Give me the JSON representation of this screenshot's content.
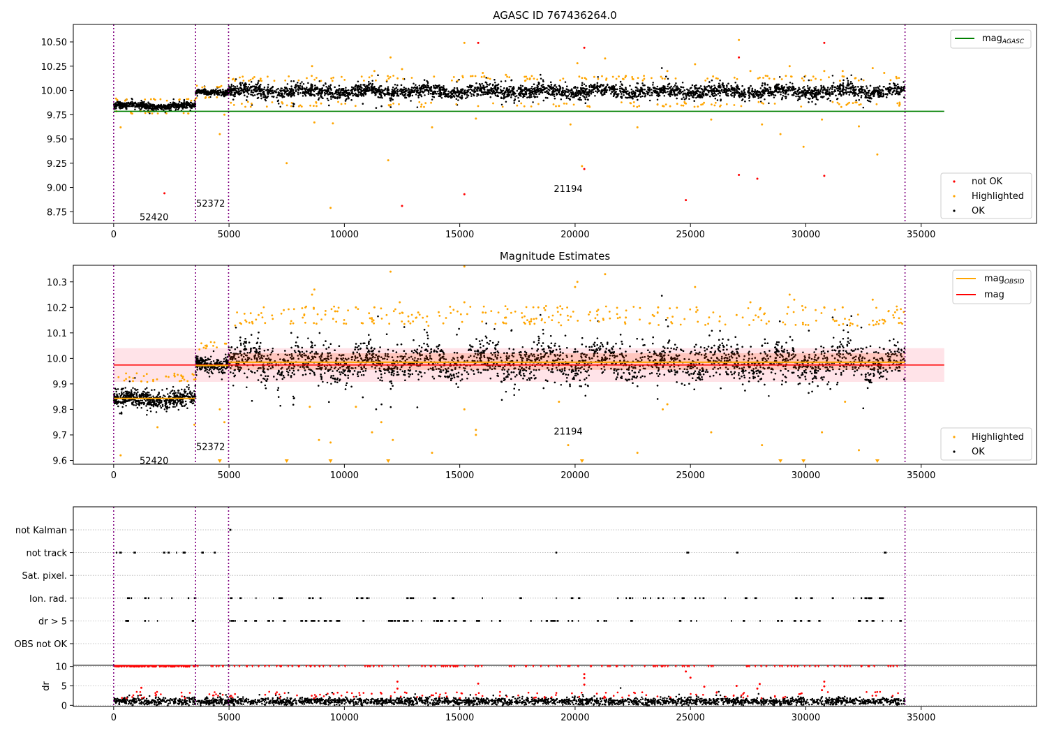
{
  "chart_data": [
    {
      "type": "scatter",
      "title": "AGASC ID 767436264.0",
      "xlim": [
        -1750,
        40000
      ],
      "ylim": [
        8.63,
        10.68
      ],
      "xticks": [
        0,
        5000,
        10000,
        15000,
        20000,
        25000,
        30000,
        35000
      ],
      "xtick_labels": [
        "0",
        "5000",
        "10000",
        "15000",
        "20000",
        "25000",
        "30000",
        "35000"
      ],
      "yticks": [
        8.75,
        9.0,
        9.25,
        9.5,
        9.75,
        10.0,
        10.25,
        10.5
      ],
      "ytick_labels": [
        "8.75",
        "9.00",
        "9.25",
        "9.50",
        "9.75",
        "10.00",
        "10.25",
        "10.50"
      ],
      "obsid_boundaries": [
        0,
        3550,
        4980,
        34300
      ],
      "obsid_labels": [
        {
          "text": "52420",
          "x": 1750,
          "y": 8.7
        },
        {
          "text": "52372",
          "x": 4200,
          "y": 8.84
        },
        {
          "text": "21194",
          "x": 19700,
          "y": 8.99
        }
      ],
      "lines": [
        {
          "name": "mag",
          "subscript": "AGASC",
          "y": 9.785,
          "x": [
            0,
            36000
          ],
          "color": "#008000"
        }
      ],
      "ok_segments": [
        {
          "x": [
            0,
            3550
          ],
          "center": 9.84,
          "spread": 0.03
        },
        {
          "x": [
            3550,
            4980
          ],
          "center": 9.985,
          "spread": 0.025
        },
        {
          "x": [
            4980,
            34300
          ],
          "center": 9.99,
          "spread": 0.06
        }
      ],
      "highlighted_points": [
        [
          300,
          9.62
        ],
        [
          4600,
          9.55
        ],
        [
          4800,
          9.75
        ],
        [
          7500,
          9.25
        ],
        [
          8700,
          9.67
        ],
        [
          9400,
          8.79
        ],
        [
          9500,
          9.66
        ],
        [
          11900,
          9.28
        ],
        [
          12000,
          10.34
        ],
        [
          13800,
          9.62
        ],
        [
          15200,
          10.49
        ],
        [
          15700,
          9.71
        ],
        [
          19300,
          9.84
        ],
        [
          19800,
          9.65
        ],
        [
          20300,
          9.22
        ],
        [
          21300,
          10.33
        ],
        [
          22700,
          9.62
        ],
        [
          23800,
          9.84
        ],
        [
          25900,
          9.7
        ],
        [
          27100,
          10.52
        ],
        [
          28100,
          9.65
        ],
        [
          28900,
          9.55
        ],
        [
          29900,
          9.42
        ],
        [
          30700,
          9.7
        ],
        [
          32300,
          9.63
        ],
        [
          33100,
          9.34
        ],
        [
          8600,
          10.25
        ],
        [
          11300,
          10.2
        ],
        [
          12500,
          10.22
        ],
        [
          16000,
          10.18
        ],
        [
          17000,
          10.16
        ],
        [
          20100,
          10.28
        ],
        [
          22200,
          10.15
        ],
        [
          24000,
          10.2
        ],
        [
          25200,
          10.27
        ],
        [
          27600,
          10.2
        ],
        [
          29300,
          10.25
        ],
        [
          30800,
          10.2
        ],
        [
          31600,
          10.2
        ],
        [
          32900,
          10.23
        ],
        [
          33400,
          10.18
        ]
      ],
      "notok_points": [
        [
          2200,
          8.94
        ],
        [
          12500,
          8.81
        ],
        [
          15200,
          8.93
        ],
        [
          15800,
          10.49
        ],
        [
          20400,
          10.44
        ],
        [
          20400,
          9.19
        ],
        [
          24800,
          8.87
        ],
        [
          27100,
          10.34
        ],
        [
          27100,
          9.13
        ],
        [
          27900,
          9.09
        ],
        [
          30800,
          10.49
        ],
        [
          30800,
          9.12
        ]
      ],
      "legend_top": "top-right",
      "legend_bottom": "bottom-right",
      "legend_entries": [
        {
          "label": "not OK",
          "color": "#ff0000"
        },
        {
          "label": "Highlighted",
          "color": "#ffa500"
        },
        {
          "label": "OK",
          "color": "#000000"
        }
      ],
      "xlabel": "",
      "ylabel": ""
    },
    {
      "type": "scatter",
      "title": "Magnitude Estimates",
      "xlim": [
        -1750,
        40000
      ],
      "ylim": [
        9.585,
        10.365
      ],
      "xticks": [
        0,
        5000,
        10000,
        15000,
        20000,
        25000,
        30000,
        35000
      ],
      "xtick_labels": [
        "0",
        "5000",
        "10000",
        "15000",
        "20000",
        "25000",
        "30000",
        "35000"
      ],
      "yticks": [
        9.6,
        9.7,
        9.8,
        9.9,
        10.0,
        10.1,
        10.2,
        10.3
      ],
      "ytick_labels": [
        "9.6",
        "9.7",
        "9.8",
        "9.9",
        "10.0",
        "10.1",
        "10.2",
        "10.3"
      ],
      "obsid_boundaries": [
        0,
        3550,
        4980,
        34300
      ],
      "obsid_labels": [
        {
          "text": "52420",
          "x": 1750,
          "y": 9.6
        },
        {
          "text": "52372",
          "x": 4200,
          "y": 9.655
        },
        {
          "text": "21194",
          "x": 19700,
          "y": 9.715
        }
      ],
      "band": {
        "x": [
          0,
          36000
        ],
        "y": [
          9.908,
          10.04
        ],
        "color": "#ffc0cb"
      },
      "inner_band": {
        "x": [
          4980,
          34300
        ],
        "y": [
          9.955,
          10.02
        ],
        "color": "#ff4500"
      },
      "lines": [
        {
          "name": "mag",
          "subscript": "",
          "y": 9.974,
          "x": [
            0,
            36000
          ],
          "color": "#ff0000"
        },
        {
          "name": "mag",
          "subscript": "OBSID",
          "color": "#ffa500",
          "segments": [
            {
              "x": [
                0,
                3550
              ],
              "y": 9.843
            },
            {
              "x": [
                3550,
                4980
              ],
              "y": 9.972
            },
            {
              "x": [
                4980,
                34300
              ],
              "y": 9.985
            }
          ]
        }
      ],
      "ok_segments": [
        {
          "x": [
            0,
            3550
          ],
          "center": 9.84,
          "spread": 0.03
        },
        {
          "x": [
            3550,
            4980
          ],
          "center": 9.98,
          "spread": 0.025
        },
        {
          "x": [
            4980,
            34300
          ],
          "center": 9.985,
          "spread": 0.065
        }
      ],
      "highlighted_points": [
        [
          300,
          9.62
        ],
        [
          1200,
          9.91
        ],
        [
          1900,
          9.73
        ],
        [
          3500,
          9.74
        ],
        [
          4600,
          9.8
        ],
        [
          4800,
          9.75
        ],
        [
          8500,
          9.81
        ],
        [
          8900,
          9.68
        ],
        [
          9400,
          9.67
        ],
        [
          10500,
          9.81
        ],
        [
          11200,
          9.71
        ],
        [
          11600,
          9.75
        ],
        [
          12000,
          10.34
        ],
        [
          12100,
          9.68
        ],
        [
          13800,
          9.63
        ],
        [
          15200,
          10.36
        ],
        [
          15200,
          9.8
        ],
        [
          15700,
          9.72
        ],
        [
          15700,
          9.7
        ],
        [
          19300,
          9.83
        ],
        [
          19700,
          9.66
        ],
        [
          21300,
          10.33
        ],
        [
          22700,
          9.63
        ],
        [
          23800,
          9.8
        ],
        [
          24000,
          9.82
        ],
        [
          25900,
          9.71
        ],
        [
          28100,
          9.66
        ],
        [
          30700,
          9.71
        ],
        [
          31700,
          9.83
        ],
        [
          32300,
          9.64
        ],
        [
          8600,
          10.25
        ],
        [
          8700,
          10.27
        ],
        [
          10500,
          10.2
        ],
        [
          11300,
          10.2
        ],
        [
          12400,
          10.22
        ],
        [
          13200,
          10.18
        ],
        [
          15200,
          10.22
        ],
        [
          16000,
          10.18
        ],
        [
          17000,
          10.16
        ],
        [
          20000,
          10.28
        ],
        [
          20100,
          10.3
        ],
        [
          22200,
          10.16
        ],
        [
          23600,
          10.2
        ],
        [
          25200,
          10.28
        ],
        [
          27000,
          10.17
        ],
        [
          27600,
          10.22
        ],
        [
          29300,
          10.25
        ],
        [
          29500,
          10.23
        ],
        [
          30800,
          10.2
        ],
        [
          31600,
          10.2
        ],
        [
          32900,
          10.23
        ],
        [
          33400,
          10.15
        ]
      ],
      "highlighted_triangles": [
        4600,
        7500,
        9400,
        11900,
        20300,
        28900,
        29900,
        33100
      ],
      "legend_top": "top-right",
      "legend_bottom": "bottom-right",
      "legend_top_entries": [
        {
          "label": "mag",
          "subscript": "OBSID",
          "color": "#ffa500"
        },
        {
          "label": "mag",
          "subscript": "",
          "color": "#ff0000"
        }
      ],
      "legend_entries": [
        {
          "label": "Highlighted",
          "color": "#ffa500"
        },
        {
          "label": "OK",
          "color": "#000000"
        }
      ],
      "xlabel": "",
      "ylabel": ""
    },
    {
      "type": "scatter",
      "title": "",
      "xlim": [
        -1750,
        40000
      ],
      "categories": [
        "not Kalman",
        "not track",
        "Sat. pixel.",
        "Ion. rad.",
        "dr > 5",
        "OBS not OK"
      ],
      "flag_rows": [
        {
          "label": "not Kalman",
          "segments": [
            [
              4980,
              5020
            ]
          ]
        },
        {
          "label": "not track",
          "segments": [
            [
              0,
              4980
            ],
            [
              19100,
              19300
            ],
            [
              24800,
              24950
            ],
            [
              26900,
              27000
            ],
            [
              33300,
              33500
            ]
          ]
        },
        {
          "label": "Sat. pixel.",
          "segments": []
        },
        {
          "label": "Ion. rad.",
          "segments": [
            [
              0,
              3550
            ],
            [
              4800,
              34300
            ]
          ]
        },
        {
          "label": "dr > 5",
          "segments": [
            [
              0,
              3550
            ],
            [
              4800,
              34300
            ]
          ]
        },
        {
          "label": "OBS not OK",
          "segments": []
        }
      ],
      "obsid_boundaries": [
        0,
        3550,
        4980,
        34300
      ]
    },
    {
      "type": "scatter",
      "title": "",
      "xlim": [
        -1750,
        40000
      ],
      "ylim": [
        -0.3,
        10.3
      ],
      "yticks": [
        0,
        5,
        10
      ],
      "ytick_labels": [
        "0",
        "5",
        "10"
      ],
      "xticks": [
        0,
        5000,
        10000,
        15000,
        20000,
        25000,
        30000,
        35000
      ],
      "xtick_labels": [
        "0",
        "5000",
        "10000",
        "15000",
        "20000",
        "25000",
        "30000",
        "35000"
      ],
      "ylabel": "dr",
      "xlabel": "",
      "dr_clip": 10,
      "dr_ok_mean": 1.0,
      "dr_ok_spread": 0.8,
      "dr_red_outliers": [
        [
          1200,
          4.5
        ],
        [
          12300,
          6.1
        ],
        [
          12300,
          4.3
        ],
        [
          15800,
          5.6
        ],
        [
          20400,
          8.0
        ],
        [
          20400,
          7.0
        ],
        [
          20400,
          5.3
        ],
        [
          24800,
          8.7
        ],
        [
          25000,
          7.1
        ],
        [
          25600,
          4.8
        ],
        [
          27000,
          5.0
        ],
        [
          27900,
          4.3
        ],
        [
          28000,
          5.5
        ],
        [
          30800,
          6.1
        ],
        [
          30800,
          4.9
        ],
        [
          30700,
          3.9
        ]
      ],
      "obsid_boundaries": [
        0,
        3550,
        4980,
        34300
      ]
    }
  ]
}
